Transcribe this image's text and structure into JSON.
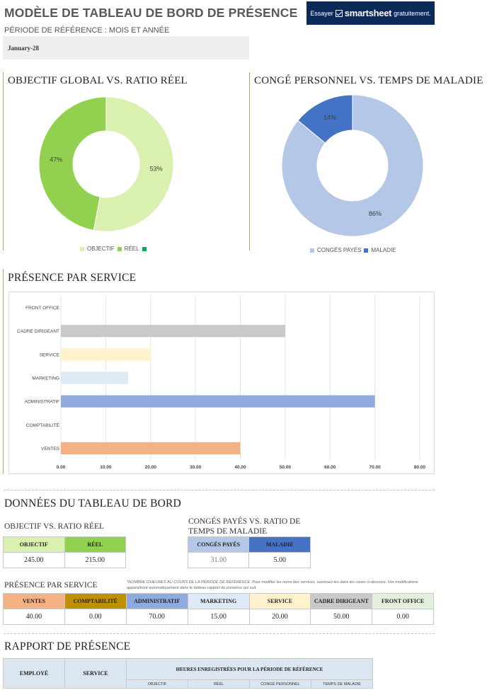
{
  "header": {
    "title": "MODÈLE DE TABLEAU DE BORD DE PRÉSENCE",
    "period_label": "PÉRIODE DE RÉFÉRENCE : MOIS ET ANNÉE",
    "period_value": "January-28"
  },
  "ad": {
    "prefix": "Essayer",
    "brand": "smartsheet",
    "suffix": "gratuitement."
  },
  "colors": {
    "objectif": "#d9f0ae",
    "reel": "#92d050",
    "conges": "#b4c7e7",
    "maladie": "#4472c4",
    "ventes": "#f4b183",
    "comptabilite": "#bf9000",
    "administratif": "#8faadc",
    "marketing": "#deebf7",
    "service": "#fff2cc",
    "cadre": "#c9c9c9",
    "front": "#e2efda"
  },
  "chart1": {
    "title": "OBJECTIF GLOBAL VS. RATIO RÉEL",
    "legend": [
      "OBJECTIF",
      "RÉEL",
      ""
    ]
  },
  "chart2": {
    "title": "CONGÉ PERSONNEL VS. TEMPS DE MALADIE",
    "legend": [
      "CONGÉS PAYÉS",
      "MALADIE"
    ]
  },
  "chart3": {
    "title": "PRÉSENCE PAR SERVICE"
  },
  "chart_data": [
    {
      "type": "pie",
      "title": "OBJECTIF GLOBAL VS. RATIO RÉEL",
      "categories": [
        "OBJECTIF",
        "RÉEL"
      ],
      "values": [
        53,
        47
      ],
      "labels": [
        "53%",
        "47%"
      ]
    },
    {
      "type": "pie",
      "title": "CONGÉ PERSONNEL VS. TEMPS DE MALADIE",
      "categories": [
        "CONGÉS PAYÉS",
        "MALADIE"
      ],
      "values": [
        86,
        14
      ],
      "labels": [
        "86%",
        "14%"
      ]
    },
    {
      "type": "bar",
      "title": "PRÉSENCE PAR SERVICE",
      "categories": [
        "FRONT OFFICE",
        "CADRE DIRIGEANT",
        "SERVICE",
        "MARKETING",
        "ADMINISTRATIF",
        "COMPTABILITÉ",
        "VENTES"
      ],
      "values": [
        0,
        50,
        20,
        15,
        70,
        0,
        40
      ],
      "xlim": [
        0,
        80
      ],
      "ticks": [
        "0.00",
        "10.00",
        "20.00",
        "30.00",
        "40.00",
        "50.00",
        "60.00",
        "70.00",
        "80.00"
      ],
      "grid": true
    }
  ],
  "data_section": {
    "title": "DONNÉES DU TABLEAU DE BORD",
    "obj_title": "OBJECTIF VS. RATIO RÉEL",
    "obj_headers": [
      "OBJECTIF",
      "RÉEL"
    ],
    "obj_values": [
      "245.00",
      "215.00"
    ],
    "leave_title_1": "CONGÉS PAYÉS VS. RATIO DE",
    "leave_title_2": "TEMPS DE MALADIE",
    "leave_headers": [
      "CONGÉS PAYÉS",
      "MALADIE"
    ],
    "leave_values": [
      "31.00",
      "5.00"
    ],
    "dept_title": "PRÉSENCE PAR SERVICE",
    "dept_note": "*NOMBRE D'HEURES AU COURS DE LA PÉRIODE DE RÉFÉRENCE. Pour modifier les noms des services, saisissez-les dans les cases ci-dessous. Vos modifications apparaîtront automatiquement dans le tableau rapport de présence qui suit.",
    "dept_headers": [
      "VENTES",
      "COMPTABILITÉ",
      "ADMINISTRATIF",
      "MARKETING",
      "SERVICE",
      "CADRE DIRIGEANT",
      "FRONT OFFICE"
    ],
    "dept_values": [
      "40.00",
      "0.00",
      "70.00",
      "15.00",
      "20.00",
      "50.00",
      "0.00"
    ]
  },
  "report": {
    "title": "RAPPORT DE PRÉSENCE",
    "col_employee": "EMPLOYÉ",
    "col_service": "SERVICE",
    "hours_header": "HEURES ENREGISTRÉES POUR LA PÉRIODE DE RÉFÉRENCE",
    "sub_headers": [
      "OBJECTIF",
      "RÉEL",
      "CONGÉ PERSONNEL",
      "TEMPS DE MALADIE"
    ]
  }
}
